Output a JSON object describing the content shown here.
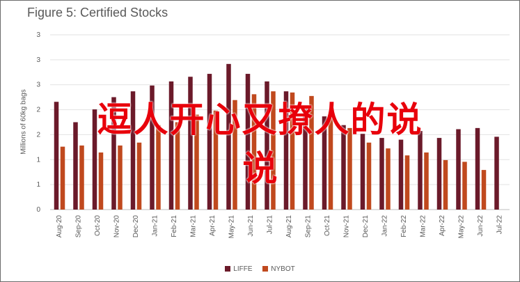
{
  "chart_data": {
    "type": "bar",
    "title": "Figure 5: Certified Stocks",
    "xlabel": "",
    "ylabel": "Millions of 60kg bags",
    "ylim": [
      0,
      3
    ],
    "ytick_labels": [
      "0",
      "1",
      "1",
      "2",
      "2",
      "3",
      "3",
      "3"
    ],
    "grid": true,
    "legend_position": "bottom",
    "categories": [
      "Aug-20",
      "Sep-20",
      "Oct-20",
      "Nov-20",
      "Dec-20",
      "Jan-21",
      "Feb-21",
      "Mar-21",
      "Apr-21",
      "May-21",
      "Jun-21",
      "Jul-21",
      "Aug-21",
      "Sep-21",
      "Oct-21",
      "Nov-21",
      "Dec-21",
      "Jan-22",
      "Feb-22",
      "Mar-22",
      "Apr-22",
      "May-22",
      "Jun-22",
      "Jul-22"
    ],
    "series": [
      {
        "name": "LIFFE",
        "color": "#6b1a2a",
        "values": [
          1.85,
          1.5,
          1.72,
          1.93,
          2.03,
          2.13,
          2.2,
          2.28,
          2.33,
          2.5,
          2.33,
          2.2,
          2.03,
          1.73,
          1.6,
          1.45,
          1.3,
          1.23,
          1.2,
          1.35,
          1.23,
          1.38,
          1.4,
          1.25
        ]
      },
      {
        "name": "NYBOT",
        "color": "#c0491e",
        "values": [
          1.08,
          1.1,
          0.98,
          1.1,
          1.15,
          1.45,
          1.5,
          1.63,
          1.7,
          1.88,
          1.98,
          2.03,
          2.01,
          1.95,
          1.68,
          1.4,
          1.15,
          1.05,
          0.93,
          0.98,
          0.85,
          0.82,
          0.68,
          0.0
        ]
      }
    ]
  },
  "overlay": {
    "line1": "逗人开心又撩人的说",
    "line2": "说"
  }
}
